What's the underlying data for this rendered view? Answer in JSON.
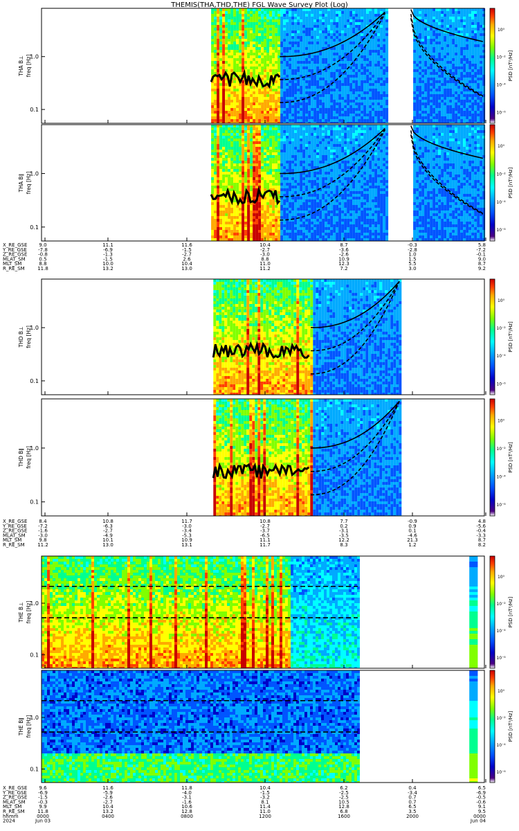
{
  "chart_data": {
    "type": "heatmap",
    "title": "THEMIS(THA,THD,THE) FGL Wave Survey Plot (Log)",
    "x_axis": {
      "time_ticks": [
        "0000",
        "0400",
        "0800",
        "1200",
        "1600",
        "2000",
        "0000"
      ],
      "date_ticks": [
        "Jun 03",
        "",
        "",
        "",
        "",
        "",
        "Jun 04"
      ],
      "year_label": "2024",
      "time_label": "hhmm"
    },
    "colorbar": {
      "label": "PSD [nT²/Hz]",
      "ticks": [
        "10⁰",
        "10⁻²",
        "10⁻⁴",
        "10⁻⁶"
      ]
    },
    "probes": [
      {
        "id": "THA",
        "panels": [
          {
            "ylabel": "THA B⊥",
            "yunit": "freq [Hz]",
            "yticks": [
              "1.0",
              "0.1"
            ],
            "data_start": 0.383,
            "data_end": 1.0,
            "gap": [
              0.779,
              0.834
            ],
            "gyro_start": 0.538
          },
          {
            "ylabel": "THA B∥",
            "yunit": "freq [Hz]",
            "yticks": [
              "1.0",
              "0.1"
            ],
            "data_start": 0.383,
            "data_end": 1.0,
            "gap": [
              0.779,
              0.834
            ],
            "gyro_start": 0.538
          }
        ],
        "ephem": [
          {
            "name": "X_RE_GSE",
            "values": [
              "9.0",
              "11.1",
              "11.6",
              "10.4",
              "8.7",
              "-0.3",
              "5.8"
            ]
          },
          {
            "name": "Y_RE_GSE",
            "values": [
              "-7.8",
              "-6.9",
              "-1.5",
              "-2.7",
              "-3.6",
              "-2.8",
              "-7.2"
            ]
          },
          {
            "name": "Z_RE_GSE",
            "values": [
              "-0.8",
              "-1.3",
              "-2.7",
              "-3.0",
              "-2.6",
              "1.0",
              "-0.1"
            ]
          },
          {
            "name": "MLAT_SM",
            "values": [
              "0.5",
              "-1.5",
              "2.6",
              "8.8",
              "10.9",
              "1.5",
              "9.0"
            ]
          },
          {
            "name": "MLT_SM",
            "values": [
              "8.8",
              "10.0",
              "10.4",
              "11.0",
              "12.3",
              "5.5",
              "8.7"
            ]
          },
          {
            "name": "R_RE_SM",
            "values": [
              "11.8",
              "13.2",
              "13.0",
              "11.2",
              "7.2",
              "3.0",
              "9.2"
            ]
          }
        ]
      },
      {
        "id": "THD",
        "panels": [
          {
            "ylabel": "THD B⊥",
            "yunit": "freq [Hz]",
            "yticks": [
              "1.0",
              "0.1"
            ],
            "data_start": 0.388,
            "data_end": 0.808,
            "gap": null,
            "gyro_start": 0.608
          },
          {
            "ylabel": "THD B∥",
            "yunit": "freq [Hz]",
            "yticks": [
              "1.0",
              "0.1"
            ],
            "data_start": 0.388,
            "data_end": 0.808,
            "gap": null,
            "gyro_start": 0.608
          }
        ],
        "ephem": [
          {
            "name": "X_RE_GSE",
            "values": [
              "8.4",
              "10.8",
              "11.7",
              "10.8",
              "7.7",
              "-0.9",
              "4.8"
            ]
          },
          {
            "name": "Y_RE_GSE",
            "values": [
              "-7.2",
              "-6.3",
              "-3.0",
              "-2.7",
              "0.2",
              "0.9",
              "-5.6"
            ]
          },
          {
            "name": "Z_RE_GSE",
            "values": [
              "-1.6",
              "-2.7",
              "-3.4",
              "-3.7",
              "-3.1",
              "0.1",
              "-0.4"
            ]
          },
          {
            "name": "MLAT_SM",
            "values": [
              "-3.0",
              "-4.9",
              "-5.3",
              "-6.5",
              "-3.5",
              "-4.6",
              "-3.3"
            ]
          },
          {
            "name": "MLT_SM",
            "values": [
              "9.8",
              "10.1",
              "10.9",
              "11.1",
              "12.2",
              "21.3",
              "8.7"
            ]
          },
          {
            "name": "R_RE_SM",
            "values": [
              "11.2",
              "13.0",
              "13.1",
              "11.7",
              "8.3",
              "1.2",
              "8.2"
            ]
          }
        ]
      },
      {
        "id": "THE",
        "panels": [
          {
            "ylabel": "THE B⊥",
            "yunit": "freq [Hz]",
            "yticks": [
              "1.0",
              "0.1"
            ],
            "data_start": 0.0,
            "data_end": 0.714,
            "gap": null,
            "extra_strip": [
              0.966,
              0.985
            ]
          },
          {
            "ylabel": "THE B∥",
            "yunit": "freq [Hz]",
            "yticks": [
              "1.0",
              "0.1"
            ],
            "data_start": 0.0,
            "data_end": 0.714,
            "gap": null,
            "extra_strip": [
              0.966,
              0.985
            ]
          }
        ],
        "ephem": [
          {
            "name": "X_RE_GSE",
            "values": [
              "9.6",
              "11.6",
              "11.8",
              "10.4",
              "6.2",
              "0.4",
              "6.5"
            ]
          },
          {
            "name": "Y_RE_GSE",
            "values": [
              "-6.9",
              "-5.9",
              "-4.0",
              "-1.5",
              "-2.5",
              "-3.4",
              "-6.9"
            ]
          },
          {
            "name": "Z_RE_GSE",
            "values": [
              "-1.5",
              "-2.6",
              "-3.1",
              "-3.2",
              "-2.5",
              "0.7",
              "-0.5"
            ]
          },
          {
            "name": "MLAT_SM",
            "values": [
              "-0.3",
              "-2.7",
              "-1.6",
              "8.1",
              "10.5",
              "0.7",
              "-0.6"
            ]
          },
          {
            "name": "MLT_SM",
            "values": [
              "9.9",
              "10.4",
              "10.6",
              "11.4",
              "12.8",
              "6.5",
              "9.1"
            ]
          },
          {
            "name": "R_RE_SM",
            "values": [
              "11.8",
              "13.2",
              "12.8",
              "11.0",
              "6.8",
              "3.5",
              "9.5"
            ]
          }
        ]
      }
    ]
  },
  "colors": {
    "colormap": [
      "#ffffff",
      "#4b0082",
      "#0000c8",
      "#0055ff",
      "#00aaff",
      "#00ffff",
      "#00ff90",
      "#80ff00",
      "#ffff00",
      "#ffaa00",
      "#ff4000",
      "#c80000"
    ],
    "line": "#000000"
  }
}
